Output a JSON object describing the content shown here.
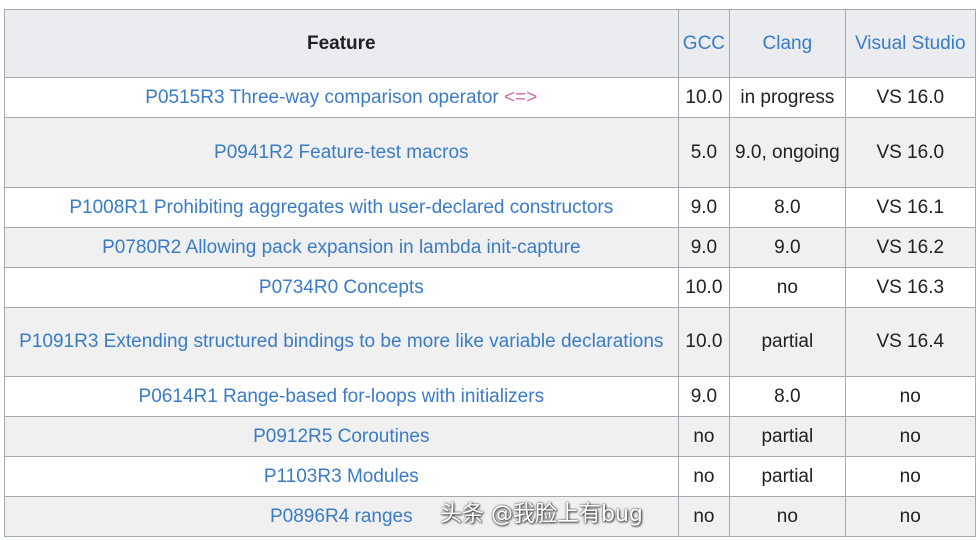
{
  "headers": {
    "feature": "Feature",
    "gcc": "GCC",
    "clang": "Clang",
    "vs": "Visual Studio"
  },
  "rows": [
    {
      "feature": "P0515R3 Three-way comparison operator",
      "op": "<=>",
      "gcc": "10.0",
      "clang": "in progress",
      "vs": "VS 16.0"
    },
    {
      "feature": "P0941R2 Feature-test macros",
      "gcc": "5.0",
      "clang": "9.0, ongoing",
      "vs": "VS 16.0"
    },
    {
      "feature": "P1008R1 Prohibiting aggregates with user-declared constructors",
      "gcc": "9.0",
      "clang": "8.0",
      "vs": "VS 16.1"
    },
    {
      "feature": "P0780R2 Allowing pack expansion in lambda init-capture",
      "gcc": "9.0",
      "clang": "9.0",
      "vs": "VS 16.2"
    },
    {
      "feature": "P0734R0 Concepts",
      "gcc": "10.0",
      "clang": "no",
      "vs": "VS 16.3"
    },
    {
      "feature": "P1091R3 Extending structured bindings to be more like variable declarations",
      "gcc": "10.0",
      "clang": "partial",
      "vs": "VS 16.4"
    },
    {
      "feature": "P0614R1 Range-based for-loops with initializers",
      "gcc": "9.0",
      "clang": "8.0",
      "vs": "no"
    },
    {
      "feature": "P0912R5 Coroutines",
      "gcc": "no",
      "clang": "partial",
      "vs": "no"
    },
    {
      "feature": "P1103R3 Modules",
      "gcc": "no",
      "clang": "partial",
      "vs": "no"
    },
    {
      "feature": "P0896R4 ranges",
      "gcc": "no",
      "clang": "no",
      "vs": "no"
    }
  ],
  "watermark": "头条 @我脸上有bug"
}
